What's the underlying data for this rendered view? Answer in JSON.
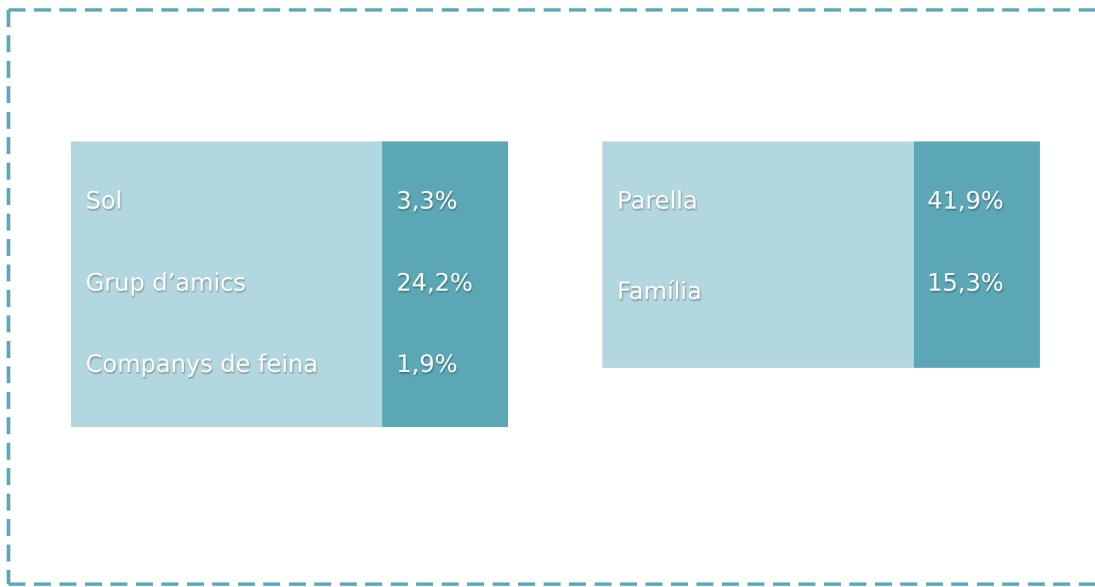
{
  "panels": [
    {
      "rows": [
        {
          "label": "Sol",
          "value": "3,3%"
        },
        {
          "label": "Grup d’amics",
          "value": "24,2%"
        },
        {
          "label": "Companys de feina",
          "value": "1,9%"
        }
      ]
    },
    {
      "rows": [
        {
          "label": "Parella",
          "value": "41,9%"
        },
        {
          "label": "Família",
          "value": "15,3%"
        }
      ]
    }
  ]
}
